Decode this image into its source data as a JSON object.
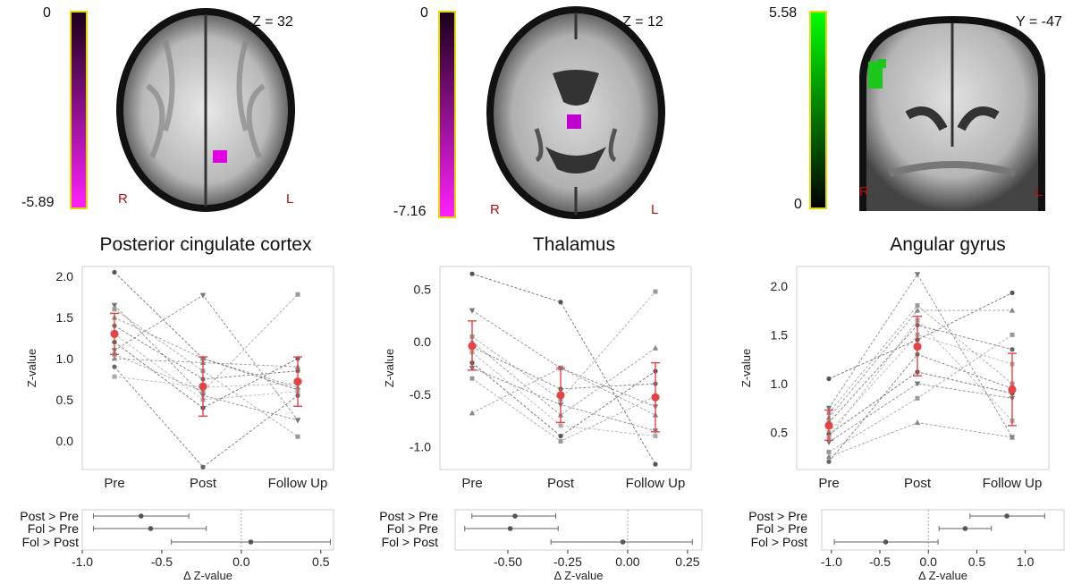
{
  "panels": [
    {
      "region": "Posterior cingulate cortex",
      "slice": "Z = 32",
      "cbar_top": "0",
      "cbar_bottom": "-5.89",
      "cbar_colors": [
        "#000000",
        "#ff00ff"
      ],
      "orient_left": "R",
      "orient_right": "L",
      "blob_color": "#e000e0"
    },
    {
      "region": "Thalamus",
      "slice": "Z = 12",
      "cbar_top": "0",
      "cbar_bottom": "-7.16",
      "cbar_colors": [
        "#000000",
        "#ff00ff"
      ],
      "orient_left": "R",
      "orient_right": "L",
      "blob_color": "#c000d0"
    },
    {
      "region": "Angular gyrus",
      "slice": "Y = -47",
      "cbar_top": "5.58",
      "cbar_bottom": "0",
      "cbar_colors": [
        "#00ff00",
        "#000000"
      ],
      "orient_left": "R",
      "orient_right": "L",
      "blob_color": "#1ac81a"
    }
  ],
  "chart_data": [
    {
      "type": "scatter",
      "title": "Posterior cingulate cortex",
      "ylabel": "Z-value",
      "categories": [
        "Pre",
        "Post",
        "Follow Up"
      ],
      "ylim": [
        -0.35,
        2.12
      ],
      "yticks": [
        "2.0",
        "1.5",
        "1.0",
        "0.5",
        "0.0"
      ],
      "grid": false,
      "mean": [
        1.3,
        0.66,
        0.72
      ],
      "ci": [
        [
          1.05,
          1.55
        ],
        [
          0.3,
          1.02
        ],
        [
          0.42,
          1.02
        ]
      ],
      "subjects": [
        [
          2.05,
          1.0,
          0.62
        ],
        [
          1.65,
          0.55,
          0.25
        ],
        [
          1.6,
          0.85,
          0.05
        ],
        [
          1.5,
          1.0,
          0.65
        ],
        [
          1.4,
          0.75,
          0.85
        ],
        [
          1.3,
          0.5,
          0.6
        ],
        [
          1.2,
          0.4,
          1.0
        ],
        [
          1.1,
          1.77,
          0.25
        ],
        [
          1.05,
          0.6,
          1.78
        ],
        [
          1.0,
          0.95,
          0.9
        ],
        [
          0.9,
          -0.32,
          0.55
        ],
        [
          0.78,
          0.65,
          0.7
        ]
      ]
    },
    {
      "type": "scatter",
      "title": "Thalamus",
      "ylabel": "Z-value",
      "categories": [
        "Pre",
        "Post",
        "Follow Up"
      ],
      "ylim": [
        -1.22,
        0.72
      ],
      "yticks": [
        "0.5",
        "0.0",
        "-0.5",
        "-1.0"
      ],
      "grid": false,
      "mean": [
        -0.04,
        -0.51,
        -0.53
      ],
      "ci": [
        [
          -0.27,
          0.2
        ],
        [
          -0.77,
          -0.25
        ],
        [
          -0.86,
          -0.2
        ]
      ],
      "subjects": [
        [
          0.65,
          0.38,
          -1.17
        ],
        [
          0.3,
          -0.25,
          -0.62
        ],
        [
          0.05,
          -0.55,
          0.48
        ],
        [
          0.0,
          -0.7,
          -0.06
        ],
        [
          -0.05,
          -0.45,
          -0.4
        ],
        [
          -0.1,
          -0.8,
          -0.9
        ],
        [
          -0.2,
          -0.9,
          -0.28
        ],
        [
          -0.25,
          -0.6,
          -0.85
        ],
        [
          -0.35,
          -0.95,
          -0.52
        ],
        [
          -0.68,
          -0.25,
          -0.7
        ]
      ]
    },
    {
      "type": "scatter",
      "title": "Angular gyrus",
      "ylabel": "Z-value",
      "categories": [
        "Pre",
        "Post",
        "Follow Up"
      ],
      "ylim": [
        0.12,
        2.2
      ],
      "yticks": [
        "2.0",
        "1.5",
        "1.0",
        "0.5"
      ],
      "grid": false,
      "mean": [
        0.57,
        1.38,
        0.94
      ],
      "ci": [
        [
          0.42,
          0.73
        ],
        [
          1.08,
          1.69
        ],
        [
          0.57,
          1.31
        ]
      ],
      "subjects": [
        [
          1.05,
          1.45,
          1.93
        ],
        [
          0.75,
          2.12,
          0.45
        ],
        [
          0.7,
          1.8,
          1.0
        ],
        [
          0.65,
          1.75,
          1.75
        ],
        [
          0.6,
          1.6,
          1.35
        ],
        [
          0.5,
          1.5,
          1.2
        ],
        [
          0.48,
          1.12,
          0.9
        ],
        [
          0.4,
          1.0,
          0.85
        ],
        [
          0.3,
          0.85,
          1.5
        ],
        [
          0.25,
          0.6,
          0.45
        ],
        [
          0.2,
          1.3,
          0.95
        ],
        [
          0.45,
          1.65,
          0.62
        ]
      ]
    },
    {
      "type": "errorbar",
      "xlabel": "Δ Z-value",
      "categories": [
        "Post > Pre",
        "Fol > Pre",
        "Fol > Post"
      ],
      "xlim": [
        -1.0,
        0.58
      ],
      "xticks": [
        "-1.0",
        "-0.5",
        "0.0",
        "0.5"
      ],
      "estimates": [
        -0.63,
        -0.57,
        0.06
      ],
      "intervals": [
        [
          -0.93,
          -0.33
        ],
        [
          -0.93,
          -0.22
        ],
        [
          -0.44,
          0.56
        ]
      ]
    },
    {
      "type": "errorbar",
      "xlabel": "Δ Z-value",
      "categories": [
        "Post > Pre",
        "Fol > Pre",
        "Fol > Post"
      ],
      "xlim": [
        -0.72,
        0.31
      ],
      "xticks": [
        "-0.50",
        "-0.25",
        "0.00",
        "0.25"
      ],
      "estimates": [
        -0.47,
        -0.49,
        -0.02
      ],
      "intervals": [
        [
          -0.65,
          -0.3
        ],
        [
          -0.68,
          -0.29
        ],
        [
          -0.32,
          0.27
        ]
      ]
    },
    {
      "type": "errorbar",
      "xlabel": "Δ Z-value",
      "categories": [
        "Post > Pre",
        "Fol > Pre",
        "Fol > Post"
      ],
      "xlim": [
        -1.1,
        1.4
      ],
      "xticks": [
        "-1.0",
        "-0.5",
        "0.0",
        "0.5",
        "1.0"
      ],
      "estimates": [
        0.81,
        0.38,
        -0.44
      ],
      "intervals": [
        [
          0.43,
          1.2
        ],
        [
          0.11,
          0.65
        ],
        [
          -0.97,
          0.1
        ]
      ]
    }
  ]
}
